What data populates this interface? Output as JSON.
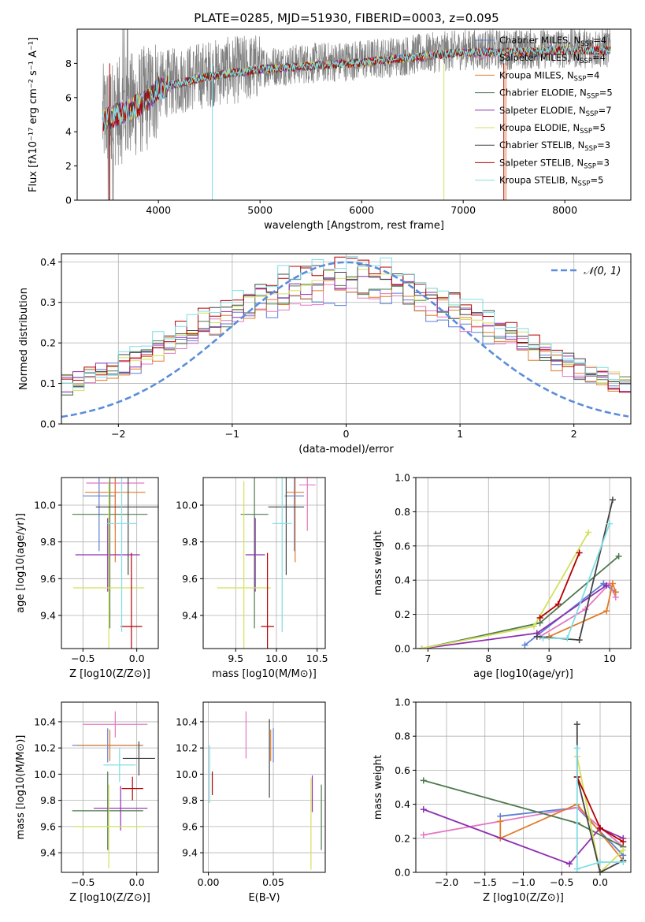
{
  "figure": {
    "title": "PLATE=0285, MJD=51930, FIBERID=0003, z=0.095"
  },
  "colors": {
    "Chabrier MILES": "#5b7fd6",
    "Salpeter MILES": "#e377c2",
    "Kroupa MILES": "#e07b29",
    "Chabrier ELODIE": "#4f7a4f",
    "Salpeter ELODIE": "#8e2fb0",
    "Kroupa ELODIE": "#d4e05a",
    "Chabrier STELIB": "#444444",
    "Salpeter STELIB": "#b40000",
    "Kroupa STELIB": "#7fdde5",
    "data": "#808080",
    "normal": "#5b8cdb"
  },
  "chart_data": [
    {
      "id": "spectrum",
      "type": "line",
      "xlabel": "wavelength [Angstrom, rest frame]",
      "ylabel": "Flux [fλ10⁻¹⁷ erg cm⁻² s⁻¹ A⁻¹]",
      "xlim": [
        3200,
        8650
      ],
      "ylim": [
        0,
        10
      ],
      "xticks": [
        4000,
        5000,
        6000,
        7000,
        8000
      ],
      "yticks": [
        0,
        2,
        4,
        6,
        8
      ],
      "grid": false,
      "legend_position": "right",
      "legend": [
        "Chabrier MILES, N_SSP=4",
        "Salpeter MILES, N_SSP=4",
        "Kroupa MILES, N_SSP=4",
        "Chabrier ELODIE, N_SSP=5",
        "Salpeter ELODIE, N_SSP=7",
        "Kroupa ELODIE, N_SSP=5",
        "Chabrier STELIB, N_SSP=3",
        "Salpeter STELIB, N_SSP=3",
        "Kroupa STELIB, N_SSP=5"
      ],
      "data_range": [
        3450,
        8450
      ],
      "continuum": [
        [
          3450,
          4.8
        ],
        [
          3700,
          5.4
        ],
        [
          3900,
          6.0
        ],
        [
          4000,
          6.7
        ],
        [
          4200,
          7.0
        ],
        [
          4500,
          7.4
        ],
        [
          5000,
          7.8
        ],
        [
          5500,
          8.0
        ],
        [
          6000,
          8.2
        ],
        [
          6500,
          8.5
        ],
        [
          7000,
          8.8
        ],
        [
          7500,
          8.8
        ],
        [
          8000,
          8.9
        ],
        [
          8450,
          8.9
        ]
      ],
      "model_range": [
        3450,
        8450
      ]
    },
    {
      "id": "residuals",
      "type": "line",
      "xlabel": "(data-model)/error",
      "ylabel": "Normed distribution",
      "xlim": [
        -2.5,
        2.5
      ],
      "ylim": [
        0,
        0.42
      ],
      "xticks": [
        -2,
        -1,
        0,
        1,
        2
      ],
      "yticks": [
        0.0,
        0.1,
        0.2,
        0.3,
        0.4
      ],
      "grid": true,
      "legend": [
        "𝒩(0, 1)"
      ],
      "legend_position": "top-right",
      "normal_mean": 0,
      "normal_sigma": 1,
      "bin_width": 0.1
    },
    {
      "id": "age_Z",
      "type": "scatter",
      "xlabel": "Z [log10(Z/Z⊙)]",
      "ylabel": "age  [log10(age/yr)]",
      "xlim": [
        -0.7,
        0.2
      ],
      "ylim": [
        9.22,
        10.15
      ],
      "xticks": [
        -0.5,
        0.0
      ],
      "yticks": [
        9.4,
        9.6,
        9.8,
        10.0
      ],
      "grid": true,
      "points": [
        {
          "model": "Chabrier MILES",
          "x": -0.35,
          "y": 10.05,
          "xerr": 0.15,
          "yerr": 0.3
        },
        {
          "model": "Salpeter MILES",
          "x": -0.2,
          "y": 10.12,
          "xerr": 0.27,
          "yerr": 0.25
        },
        {
          "model": "Kroupa MILES",
          "x": -0.2,
          "y": 10.07,
          "xerr": 0.28,
          "yerr": 0.38
        },
        {
          "model": "Chabrier ELODIE",
          "x": -0.25,
          "y": 9.95,
          "xerr": 0.35,
          "yerr": 0.62
        },
        {
          "model": "Salpeter ELODIE",
          "x": -0.27,
          "y": 9.73,
          "xerr": 0.3,
          "yerr": 0.2
        },
        {
          "model": "Kroupa ELODIE",
          "x": -0.26,
          "y": 9.55,
          "xerr": 0.33,
          "yerr": 0.58
        },
        {
          "model": "Chabrier STELIB",
          "x": -0.08,
          "y": 9.99,
          "xerr": 0.3,
          "yerr": 0.37
        },
        {
          "model": "Salpeter STELIB",
          "x": -0.05,
          "y": 9.34,
          "xerr": 0.1,
          "yerr": 0.4
        },
        {
          "model": "Kroupa STELIB",
          "x": -0.14,
          "y": 9.9,
          "xerr": 0.14,
          "yerr": 0.59
        }
      ]
    },
    {
      "id": "age_mass",
      "type": "scatter",
      "xlabel": "mass [log10(M/M⊙)]",
      "ylabel": "",
      "xlim": [
        9.1,
        10.6
      ],
      "ylim": [
        9.22,
        10.15
      ],
      "xticks": [
        9.5,
        10.0,
        10.5
      ],
      "yticks": [
        9.4,
        9.6,
        9.8,
        10.0
      ],
      "grid": true,
      "points": [
        {
          "model": "Chabrier MILES",
          "x": 10.22,
          "y": 10.05,
          "xerr": 0.12,
          "yerr": 0.3
        },
        {
          "model": "Salpeter MILES",
          "x": 10.38,
          "y": 10.11,
          "xerr": 0.1,
          "yerr": 0.25
        },
        {
          "model": "Kroupa MILES",
          "x": 10.23,
          "y": 10.07,
          "xerr": 0.11,
          "yerr": 0.38
        },
        {
          "model": "Chabrier ELODIE",
          "x": 9.73,
          "y": 9.95,
          "xerr": 0.17,
          "yerr": 0.62
        },
        {
          "model": "Salpeter ELODIE",
          "x": 9.74,
          "y": 9.73,
          "xerr": 0.12,
          "yerr": 0.2
        },
        {
          "model": "Kroupa ELODIE",
          "x": 9.6,
          "y": 9.55,
          "xerr": 0.33,
          "yerr": 0.58
        },
        {
          "model": "Chabrier STELIB",
          "x": 10.12,
          "y": 9.99,
          "xerr": 0.22,
          "yerr": 0.37
        },
        {
          "model": "Salpeter STELIB",
          "x": 9.89,
          "y": 9.34,
          "xerr": 0.08,
          "yerr": 0.4
        },
        {
          "model": "Kroupa STELIB",
          "x": 10.07,
          "y": 9.9,
          "xerr": 0.12,
          "yerr": 0.59
        }
      ]
    },
    {
      "id": "weight_age",
      "type": "line",
      "xlabel": "age  [log10(age/yr)]",
      "ylabel": "mass weight",
      "xlim": [
        6.8,
        10.35
      ],
      "ylim": [
        0,
        1.0
      ],
      "xticks": [
        7,
        8,
        9,
        10
      ],
      "yticks": [
        0.0,
        0.2,
        0.4,
        0.6,
        0.8,
        1.0
      ],
      "grid": true,
      "series": [
        {
          "model": "Chabrier MILES",
          "points": [
            [
              8.6,
              0.02
            ],
            [
              9.9,
              0.38
            ],
            [
              10.1,
              0.33
            ]
          ]
        },
        {
          "model": "Salpeter MILES",
          "points": [
            [
              8.85,
              0.07
            ],
            [
              9.6,
              0.23
            ],
            [
              10.0,
              0.38
            ],
            [
              10.1,
              0.3
            ]
          ]
        },
        {
          "model": "Kroupa MILES",
          "points": [
            [
              9.0,
              0.07
            ],
            [
              9.95,
              0.22
            ],
            [
              10.05,
              0.38
            ],
            [
              10.1,
              0.33
            ]
          ]
        },
        {
          "model": "Chabrier ELODIE",
          "points": [
            [
              6.9,
              0.0
            ],
            [
              8.85,
              0.15
            ],
            [
              10.15,
              0.54
            ]
          ]
        },
        {
          "model": "Salpeter ELODIE",
          "points": [
            [
              6.9,
              0.0
            ],
            [
              8.8,
              0.09
            ],
            [
              9.95,
              0.37
            ]
          ]
        },
        {
          "model": "Kroupa ELODIE",
          "points": [
            [
              6.9,
              0.0
            ],
            [
              8.75,
              0.13
            ],
            [
              9.65,
              0.68
            ]
          ]
        },
        {
          "model": "Chabrier STELIB",
          "points": [
            [
              8.8,
              0.07
            ],
            [
              9.5,
              0.05
            ],
            [
              10.05,
              0.87
            ]
          ]
        },
        {
          "model": "Salpeter STELIB",
          "points": [
            [
              8.85,
              0.18
            ],
            [
              9.15,
              0.26
            ],
            [
              9.5,
              0.56
            ]
          ]
        },
        {
          "model": "Kroupa STELIB",
          "points": [
            [
              8.9,
              0.06
            ],
            [
              9.3,
              0.06
            ],
            [
              10.0,
              0.73
            ]
          ]
        }
      ]
    },
    {
      "id": "mass_Z",
      "type": "scatter",
      "xlabel": "Z [log10(Z/Z⊙)]",
      "ylabel": "mass [log10(M/M⊙)]",
      "xlim": [
        -0.7,
        0.2
      ],
      "ylim": [
        9.25,
        10.55
      ],
      "xticks": [
        -0.5,
        0.0
      ],
      "yticks": [
        9.4,
        9.6,
        9.8,
        10.0,
        10.2,
        10.4
      ],
      "grid": true,
      "points": [
        {
          "model": "Chabrier MILES",
          "x": -0.27,
          "y": 10.22,
          "xerr": 0.33,
          "yerr": 0.13
        },
        {
          "model": "Salpeter MILES",
          "x": -0.2,
          "y": 10.38,
          "xerr": 0.3,
          "yerr": 0.1
        },
        {
          "model": "Kroupa MILES",
          "x": -0.25,
          "y": 10.22,
          "xerr": 0.3,
          "yerr": 0.12
        },
        {
          "model": "Chabrier ELODIE",
          "x": -0.27,
          "y": 9.72,
          "xerr": 0.33,
          "yerr": 0.3
        },
        {
          "model": "Salpeter ELODIE",
          "x": -0.15,
          "y": 9.74,
          "xerr": 0.25,
          "yerr": 0.17
        },
        {
          "model": "Kroupa ELODIE",
          "x": -0.26,
          "y": 9.6,
          "xerr": 0.32,
          "yerr": 0.32
        },
        {
          "model": "Chabrier STELIB",
          "x": 0.02,
          "y": 10.12,
          "xerr": 0.15,
          "yerr": 0.13
        },
        {
          "model": "Salpeter STELIB",
          "x": -0.04,
          "y": 9.89,
          "xerr": 0.1,
          "yerr": 0.09
        },
        {
          "model": "Kroupa STELIB",
          "x": -0.16,
          "y": 10.07,
          "xerr": 0.15,
          "yerr": 0.13
        }
      ]
    },
    {
      "id": "mass_ebv",
      "type": "scatter",
      "xlabel": "E(B-V)",
      "ylabel": "",
      "xlim": [
        -0.004,
        0.09
      ],
      "ylim": [
        9.25,
        10.55
      ],
      "xticks": [
        0.0,
        0.05
      ],
      "yticks": [
        9.4,
        9.6,
        9.8,
        10.0,
        10.2,
        10.4
      ],
      "grid": true,
      "points": [
        {
          "model": "Chabrier MILES",
          "x": 0.05,
          "y": 10.22,
          "yerr": 0.13
        },
        {
          "model": "Salpeter MILES",
          "x": 0.029,
          "y": 10.3,
          "yerr": 0.18
        },
        {
          "model": "Kroupa MILES",
          "x": 0.048,
          "y": 10.22,
          "yerr": 0.12
        },
        {
          "model": "Chabrier ELODIE",
          "x": 0.087,
          "y": 9.67,
          "yerr": 0.25
        },
        {
          "model": "Salpeter ELODIE",
          "x": 0.08,
          "y": 9.85,
          "yerr": 0.14
        },
        {
          "model": "Kroupa ELODIE",
          "x": 0.079,
          "y": 9.62,
          "yerr": 0.35
        },
        {
          "model": "Chabrier STELIB",
          "x": 0.047,
          "y": 10.12,
          "yerr": 0.3
        },
        {
          "model": "Salpeter STELIB",
          "x": 0.003,
          "y": 9.93,
          "yerr": 0.09
        },
        {
          "model": "Kroupa STELIB",
          "x": 0.001,
          "y": 10.0,
          "yerr": 0.22
        }
      ]
    },
    {
      "id": "weight_Z",
      "type": "line",
      "xlabel": "Z [log10(Z/Z⊙)]",
      "ylabel": "mass weight",
      "xlim": [
        -2.4,
        0.4
      ],
      "ylim": [
        0,
        1.0
      ],
      "xticks": [
        -2.0,
        -1.5,
        -1.0,
        -0.5,
        0.0
      ],
      "yticks": [
        0.0,
        0.2,
        0.4,
        0.6,
        0.8,
        1.0
      ],
      "grid": true,
      "series": [
        {
          "model": "Chabrier MILES",
          "points": [
            [
              -1.3,
              0.33
            ],
            [
              -0.3,
              0.38
            ],
            [
              0.3,
              0.1
            ]
          ]
        },
        {
          "model": "Salpeter MILES",
          "points": [
            [
              -2.3,
              0.22
            ],
            [
              -0.3,
              0.38
            ],
            [
              0.3,
              0.15
            ]
          ]
        },
        {
          "model": "Kroupa MILES",
          "points": [
            [
              -1.3,
              0.3
            ],
            [
              -1.3,
              0.2
            ],
            [
              -0.3,
              0.4
            ],
            [
              0.3,
              0.07
            ]
          ]
        },
        {
          "model": "Chabrier ELODIE",
          "points": [
            [
              -2.3,
              0.54
            ],
            [
              -0.3,
              0.29
            ],
            [
              0.3,
              0.15
            ]
          ]
        },
        {
          "model": "Salpeter ELODIE",
          "points": [
            [
              -2.3,
              0.37
            ],
            [
              -0.4,
              0.05
            ],
            [
              0.0,
              0.26
            ],
            [
              0.3,
              0.2
            ]
          ]
        },
        {
          "model": "Kroupa ELODIE",
          "points": [
            [
              -0.3,
              0.68
            ],
            [
              0.0,
              0.0
            ],
            [
              0.3,
              0.13
            ]
          ]
        },
        {
          "model": "Chabrier STELIB",
          "points": [
            [
              -0.3,
              0.87
            ],
            [
              -0.3,
              0.56
            ],
            [
              0.0,
              0.0
            ],
            [
              0.3,
              0.07
            ]
          ]
        },
        {
          "model": "Salpeter STELIB",
          "points": [
            [
              -0.3,
              0.56
            ],
            [
              0.0,
              0.26
            ],
            [
              0.3,
              0.18
            ]
          ]
        },
        {
          "model": "Kroupa STELIB",
          "points": [
            [
              -0.3,
              0.73
            ],
            [
              -0.3,
              0.02
            ],
            [
              0.0,
              0.06
            ],
            [
              0.3,
              0.06
            ]
          ]
        }
      ]
    }
  ]
}
